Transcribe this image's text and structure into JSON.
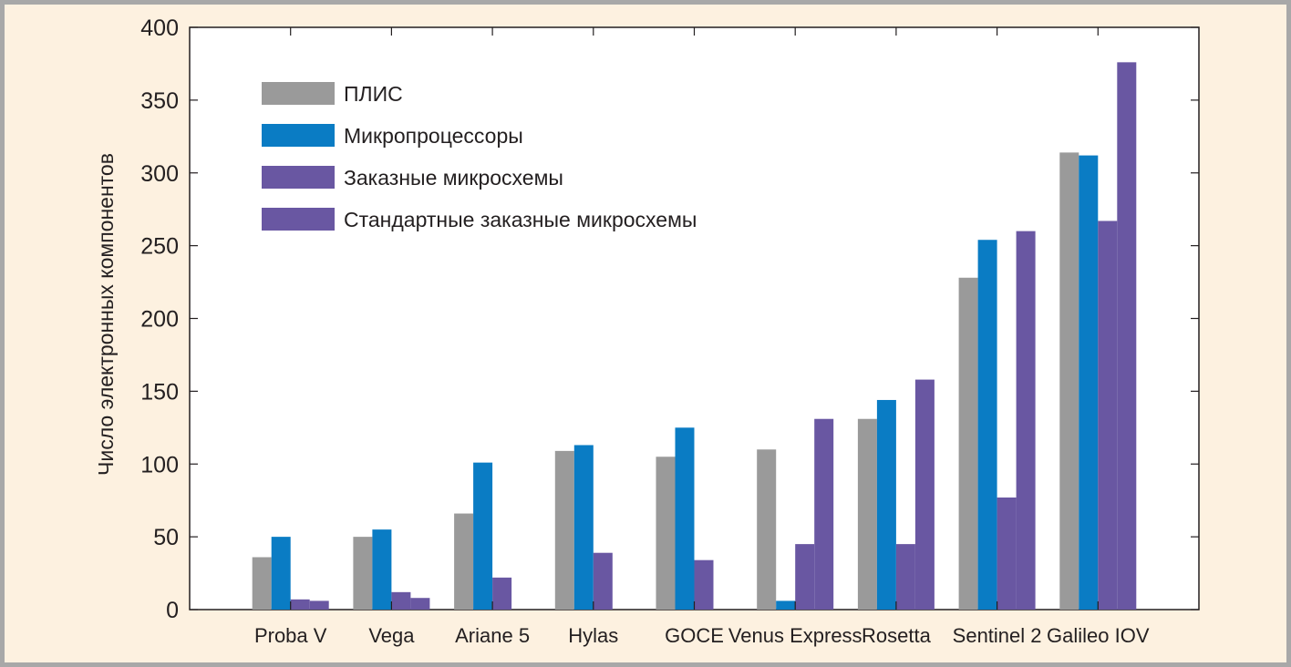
{
  "chart_data": {
    "type": "bar",
    "title": "",
    "xlabel": "",
    "ylabel": "Число электронных компонентов",
    "ylim": [
      0,
      400
    ],
    "yticks": [
      "0",
      "50",
      "100",
      "150",
      "200",
      "250",
      "300",
      "350",
      "400"
    ],
    "categories": [
      "Proba V",
      "Vega",
      "Ariane 5",
      "Hylas",
      "GOCE",
      "Venus Express",
      "Rosetta",
      "Sentinel 2",
      "Galileo IOV"
    ],
    "series": [
      {
        "name": "ПЛИС",
        "color": "#9a9a9a",
        "values": [
          36,
          50,
          66,
          109,
          105,
          110,
          131,
          228,
          314
        ]
      },
      {
        "name": "Микропроцессоры",
        "color": "#0a7cc4",
        "values": [
          50,
          55,
          101,
          113,
          125,
          6,
          144,
          254,
          312
        ]
      },
      {
        "name": "Заказные микросхемы",
        "color": "#6957a2",
        "values": [
          7,
          12,
          22,
          39,
          34,
          45,
          45,
          77,
          267
        ]
      },
      {
        "name": "Стандартные заказные микросхемы",
        "color": "#6957a2",
        "values": [
          6,
          8,
          0,
          0,
          0,
          131,
          158,
          260,
          376
        ]
      }
    ],
    "legend_position": "top-left",
    "grid": false
  }
}
